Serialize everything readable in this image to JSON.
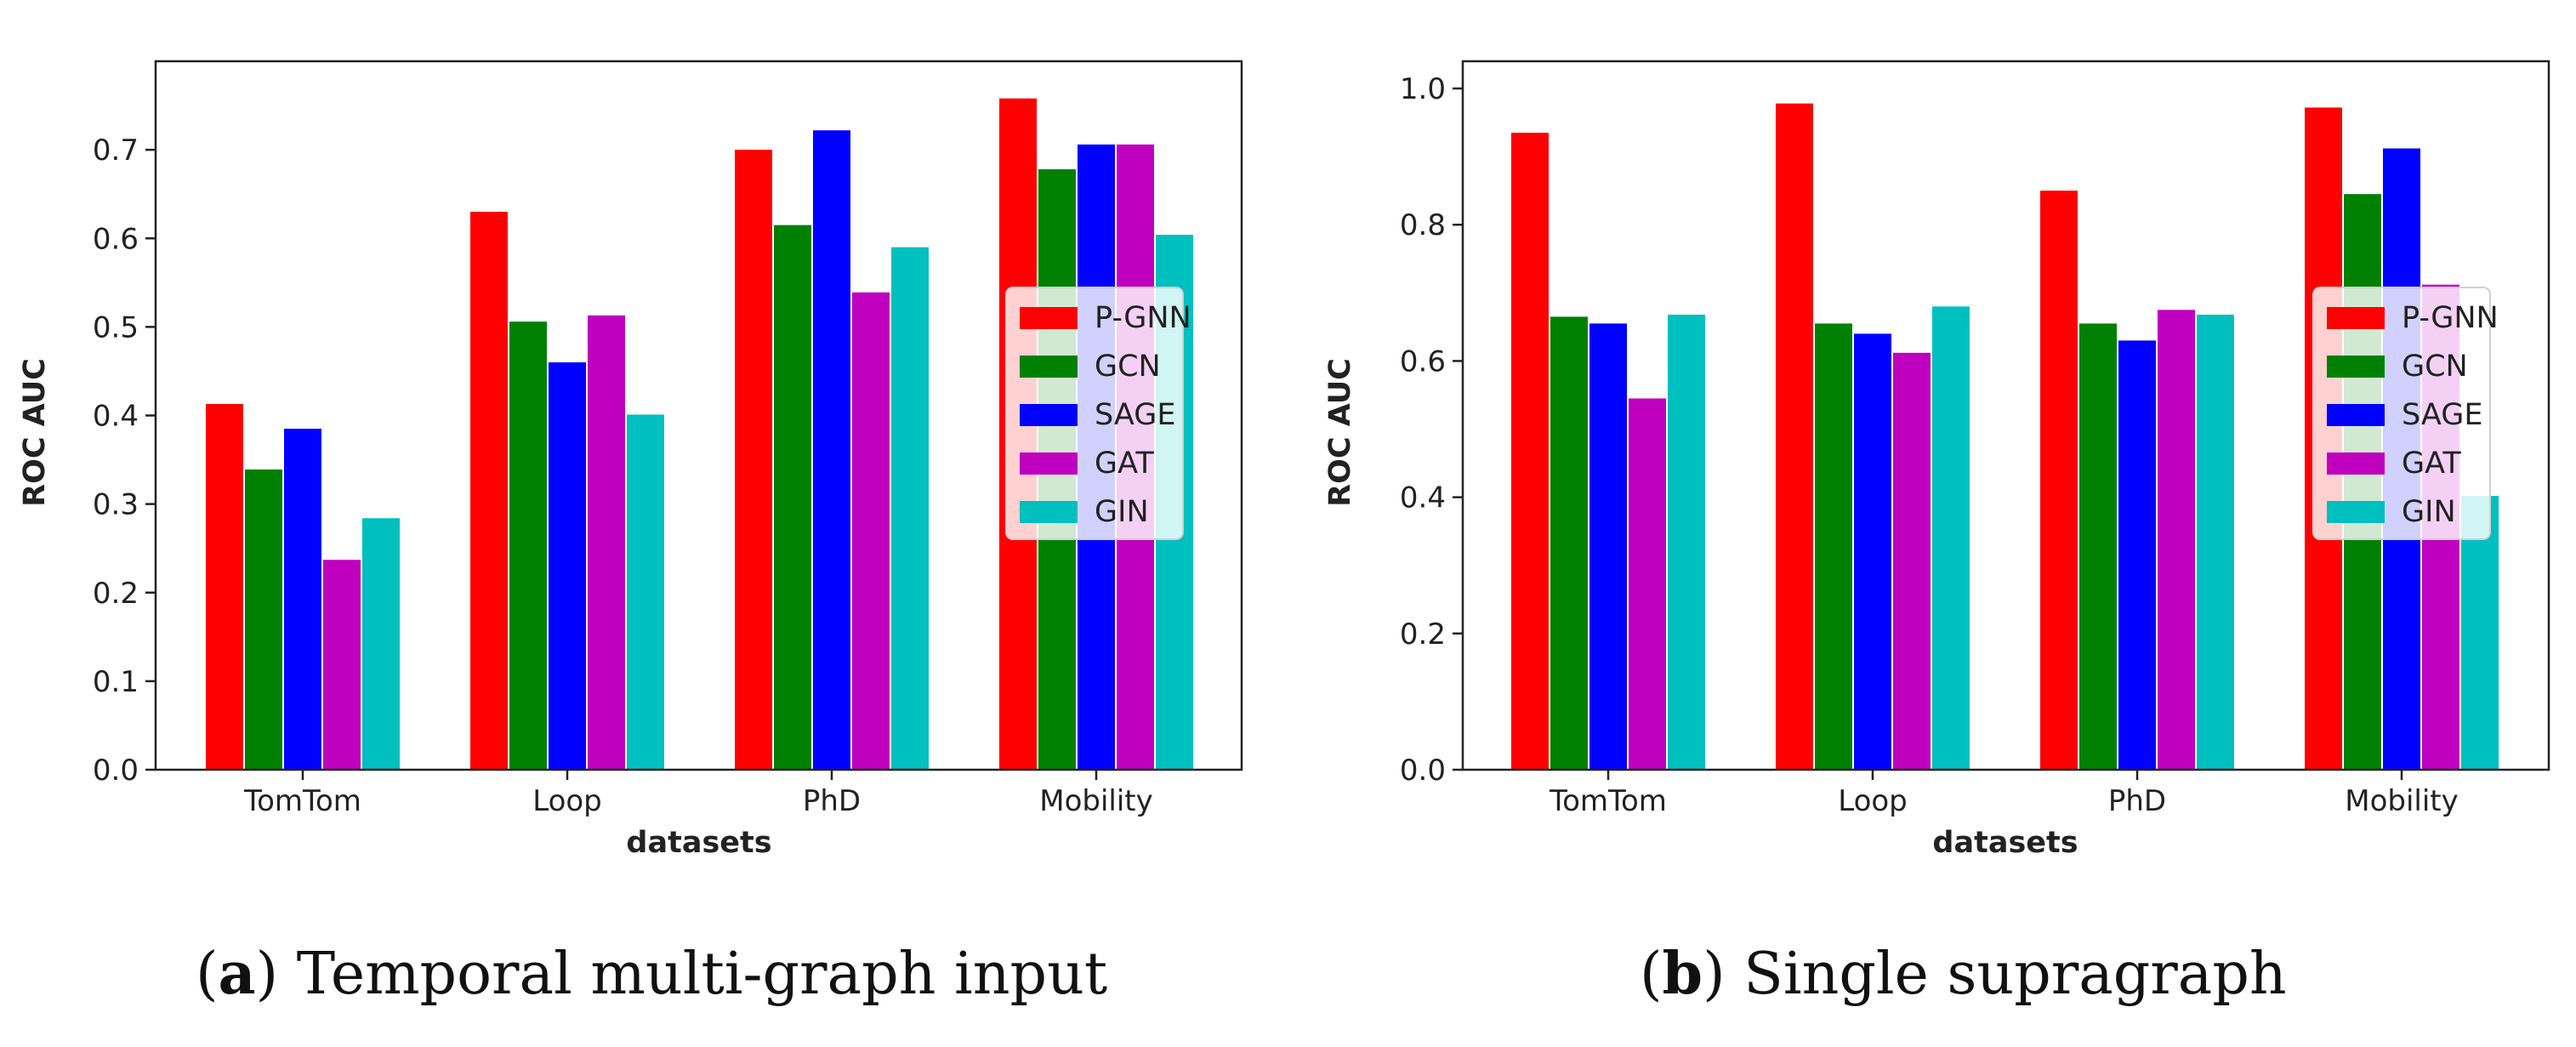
{
  "figure": {
    "captions": [
      {
        "letter": "a",
        "text": "Temporal multi-graph input"
      },
      {
        "letter": "b",
        "text": "Single supragraph"
      }
    ]
  },
  "chart_data": [
    {
      "type": "bar",
      "title": "",
      "xlabel": "datasets",
      "ylabel": "ROC AUC",
      "categories": [
        "TomTom",
        "Loop",
        "PhD",
        "Mobility"
      ],
      "ylim": [
        0,
        0.8
      ],
      "yticks": [
        0.0,
        0.1,
        0.2,
        0.3,
        0.4,
        0.5,
        0.6,
        0.7
      ],
      "ytick_labels": [
        "0.0",
        "0.1",
        "0.2",
        "0.3",
        "0.4",
        "0.5",
        "0.6",
        "0.7"
      ],
      "legend_position": "center-right",
      "series": [
        {
          "name": "P-GNN",
          "color": "#ff0000",
          "values": [
            0.413,
            0.63,
            0.7,
            0.758
          ]
        },
        {
          "name": "GCN",
          "color": "#008000",
          "values": [
            0.339,
            0.506,
            0.615,
            0.678
          ]
        },
        {
          "name": "SAGE",
          "color": "#0000ff",
          "values": [
            0.385,
            0.46,
            0.722,
            0.706
          ]
        },
        {
          "name": "GAT",
          "color": "#bf00bf",
          "values": [
            0.237,
            0.513,
            0.539,
            0.706
          ]
        },
        {
          "name": "GIN",
          "color": "#00bfbf",
          "values": [
            0.284,
            0.401,
            0.59,
            0.604
          ]
        }
      ]
    },
    {
      "type": "bar",
      "title": "",
      "xlabel": "datasets",
      "ylabel": "ROC AUC",
      "categories": [
        "TomTom",
        "Loop",
        "PhD",
        "Mobility"
      ],
      "ylim": [
        0,
        1.04
      ],
      "yticks": [
        0.0,
        0.2,
        0.4,
        0.6,
        0.8,
        1.0
      ],
      "ytick_labels": [
        "0.0",
        "0.2",
        "0.4",
        "0.6",
        "0.8",
        "1.0"
      ],
      "legend_position": "center-right",
      "series": [
        {
          "name": "P-GNN",
          "color": "#ff0000",
          "values": [
            0.935,
            0.978,
            0.85,
            0.972
          ]
        },
        {
          "name": "GCN",
          "color": "#008000",
          "values": [
            0.665,
            0.655,
            0.655,
            0.845
          ]
        },
        {
          "name": "SAGE",
          "color": "#0000ff",
          "values": [
            0.655,
            0.64,
            0.63,
            0.912
          ]
        },
        {
          "name": "GAT",
          "color": "#bf00bf",
          "values": [
            0.545,
            0.612,
            0.675,
            0.712
          ]
        },
        {
          "name": "GIN",
          "color": "#00bfbf",
          "values": [
            0.668,
            0.68,
            0.668,
            0.402
          ]
        }
      ]
    }
  ]
}
